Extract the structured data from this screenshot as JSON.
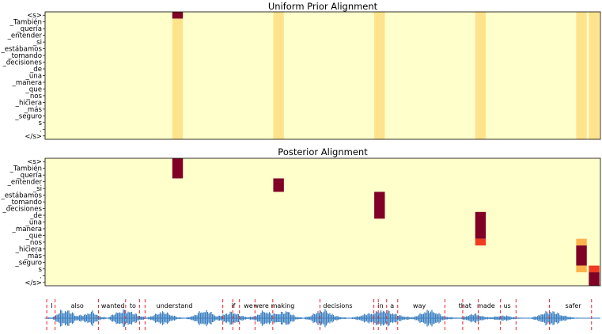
{
  "chart_data": [
    {
      "type": "heatmap",
      "title": "Uniform Prior Alignment",
      "y_tick_labels": [
        "<s>",
        "_También",
        "_quería",
        "_entender",
        "_si",
        "_estábamos",
        "_tomando",
        "_decisiones",
        "_de",
        "_una",
        "_manera",
        "_que",
        "_nos",
        "_hiciera",
        "_más",
        "_seguro",
        "s",
        ".",
        "</s>"
      ],
      "n_columns": 44,
      "background_color": "#ffffcc",
      "cells": [
        {
          "col": 10,
          "row": 0,
          "color": "#800026"
        },
        {
          "col": 10,
          "row_from": 1,
          "row_to": 18,
          "color": "#ffe38c"
        },
        {
          "col": 18,
          "row_from": 0,
          "row_to": 18,
          "color": "#ffe38c"
        },
        {
          "col": 26,
          "row_from": 0,
          "row_to": 18,
          "color": "#ffe38c"
        },
        {
          "col": 34,
          "row_from": 0,
          "row_to": 18,
          "color": "#ffe38c"
        },
        {
          "col": 42,
          "row_from": 0,
          "row_to": 18,
          "color": "#ffe38c"
        },
        {
          "col": 43,
          "row_from": 0,
          "row_to": 18,
          "color": "#ffe38c"
        }
      ]
    },
    {
      "type": "heatmap",
      "title": "Posterior Alignment",
      "y_tick_labels": [
        "<s>",
        "_También",
        "_quería",
        "_entender",
        "_si",
        "_estábamos",
        "_tomando",
        "_decisiones",
        "_de",
        "_una",
        "_manera",
        "_que",
        "_nos",
        "_hiciera",
        "_más",
        "_seguro",
        "s",
        ".",
        "</s>"
      ],
      "n_columns": 44,
      "background_color": "#ffffcc",
      "cells": [
        {
          "col": 10,
          "row_from": 0,
          "row_to": 2,
          "color": "#800026"
        },
        {
          "col": 18,
          "row_from": 3,
          "row_to": 4,
          "color": "#800026"
        },
        {
          "col": 26,
          "row_from": 5,
          "row_to": 8,
          "color": "#800026"
        },
        {
          "col": 34,
          "row_from": 8,
          "row_to": 11,
          "color": "#800026"
        },
        {
          "col": 34,
          "row": 12,
          "color": "#f03b20"
        },
        {
          "col": 42,
          "row": 12,
          "color": "#feb24c"
        },
        {
          "col": 42,
          "row_from": 13,
          "row_to": 15,
          "color": "#800026"
        },
        {
          "col": 42,
          "row": 16,
          "color": "#feb24c"
        },
        {
          "col": 43,
          "row": 16,
          "color": "#f03b20"
        },
        {
          "col": 43,
          "row_from": 17,
          "row_to": 18,
          "color": "#800026"
        }
      ]
    },
    {
      "type": "line",
      "series": [
        {
          "values": [
            0.05,
            0.1,
            0.85,
            0.9,
            0.3,
            0.4,
            0.8,
            0.2,
            0.05,
            0.6,
            0.9,
            0.75,
            0.3,
            0.05,
            0.4,
            0.8,
            0.45,
            0.1,
            0.05,
            0.3,
            0.85,
            0.8,
            0.2,
            0.5,
            0.75,
            0.3,
            0.1,
            0.3,
            0.9,
            0.5,
            0.6,
            0.85,
            0.2,
            0.05,
            0.3,
            0.85,
            0.9,
            0.3,
            0.1,
            0.05,
            0.2,
            0.5,
            0.6,
            0.9,
            0.8,
            0.4,
            0.2,
            0.1,
            0.5,
            0.95,
            0.7,
            0.2,
            0.1,
            0.05,
            0.3,
            0.55,
            0.2,
            0.1,
            0.25,
            0.3,
            0.1,
            0.05,
            0.02,
            0.3,
            0.7,
            0.8,
            0.4,
            0.15,
            0.05,
            0.03,
            0.05,
            0.02
          ]
        }
      ],
      "color": "#3b7fc0",
      "word_labels": [
        {
          "text": "I",
          "t": 0.012
        },
        {
          "text": "also",
          "t": 0.058
        },
        {
          "text": "wanted",
          "t": 0.122
        },
        {
          "text": "to",
          "t": 0.158
        },
        {
          "text": "understand",
          "t": 0.233
        },
        {
          "text": "if",
          "t": 0.339
        },
        {
          "text": "we",
          "t": 0.366
        },
        {
          "text": "were",
          "t": 0.389
        },
        {
          "text": "making",
          "t": 0.428
        },
        {
          "text": "decisions",
          "t": 0.527
        },
        {
          "text": "in",
          "t": 0.604
        },
        {
          "text": "a",
          "t": 0.625
        },
        {
          "text": "way",
          "t": 0.674
        },
        {
          "text": "that",
          "t": 0.756
        },
        {
          "text": "made",
          "t": 0.794
        },
        {
          "text": "us",
          "t": 0.832
        },
        {
          "text": "safer",
          "t": 0.951
        }
      ],
      "boundaries": [
        0.003,
        0.018,
        0.096,
        0.145,
        0.17,
        0.18,
        0.32,
        0.338,
        0.35,
        0.378,
        0.41,
        0.495,
        0.592,
        0.6,
        0.615,
        0.635,
        0.72,
        0.752,
        0.78,
        0.82,
        0.848,
        0.908,
        0.984
      ]
    }
  ]
}
